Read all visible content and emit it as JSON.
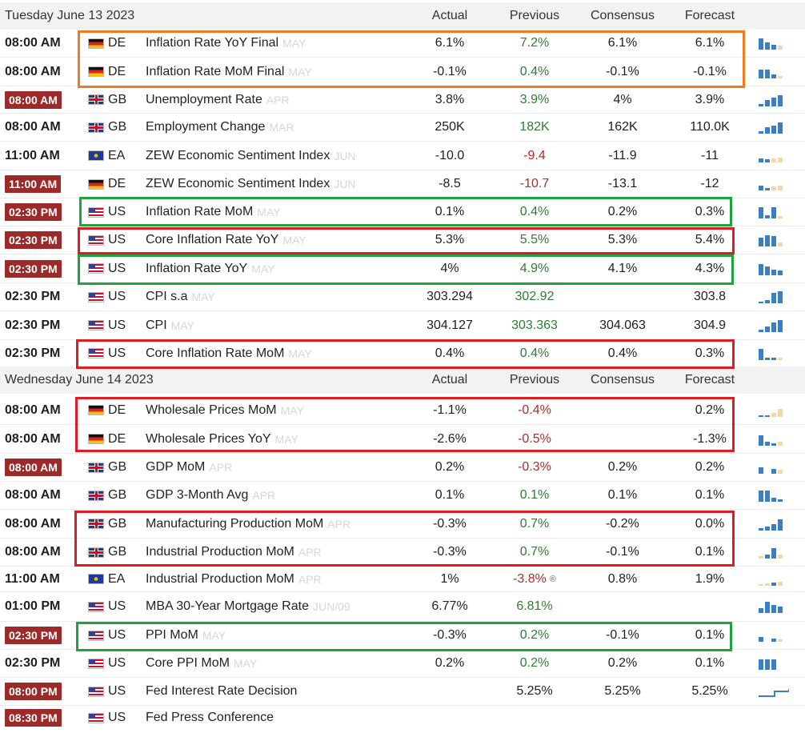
{
  "days": [
    {
      "date": "Tuesday June 13 2023",
      "columns": {
        "actual": "Actual",
        "previous": "Previous",
        "consensus": "Consensus",
        "forecast": "Forecast"
      },
      "rows": [
        {
          "time": "08:00 AM",
          "badge": false,
          "flag": "de",
          "country": "DE",
          "event": "Inflation Rate YoY Final",
          "ref": "MAY",
          "actual": "6.1%",
          "previous": "7.2%",
          "prev_color": "green",
          "consensus": "6.1%",
          "forecast": "6.1%",
          "spark": [
            [
              0.9,
              "b"
            ],
            [
              0.55,
              "b"
            ],
            [
              0.4,
              "b"
            ],
            [
              0.3,
              "l"
            ]
          ]
        },
        {
          "time": "08:00 AM",
          "badge": false,
          "flag": "de",
          "country": "DE",
          "event": "Inflation Rate MoM Final",
          "ref": "MAY",
          "actual": "-0.1%",
          "previous": "0.4%",
          "prev_color": "green",
          "consensus": "-0.1%",
          "forecast": "-0.1%",
          "spark": [
            [
              0.7,
              "b"
            ],
            [
              0.7,
              "b"
            ],
            [
              0.3,
              "b"
            ],
            [
              0.2,
              "l"
            ]
          ]
        },
        {
          "time": "08:00 AM",
          "badge": true,
          "flag": "gb",
          "country": "GB",
          "event": "Unemployment Rate",
          "ref": "APR",
          "actual": "3.8%",
          "previous": "3.9%",
          "prev_color": "green",
          "consensus": "4%",
          "forecast": "3.9%",
          "spark": [
            [
              0.2,
              "b"
            ],
            [
              0.5,
              "b"
            ],
            [
              0.7,
              "b"
            ],
            [
              0.9,
              "b"
            ]
          ]
        },
        {
          "time": "08:00 AM",
          "badge": false,
          "flag": "gb",
          "country": "GB",
          "event": "Employment Change",
          "ref": "MAR",
          "actual": "250K",
          "previous": "182K",
          "prev_color": "green",
          "consensus": "162K",
          "forecast": "110.0K",
          "spark": [
            [
              0.2,
              "b"
            ],
            [
              0.5,
              "b"
            ],
            [
              0.6,
              "b"
            ],
            [
              0.9,
              "b"
            ]
          ]
        },
        {
          "time": "11:00 AM",
          "badge": false,
          "flag": "ea",
          "country": "EA",
          "event": "ZEW Economic Sentiment Index",
          "ref": "JUN",
          "actual": "-10.0",
          "previous": "-9.4",
          "prev_color": "red",
          "consensus": "-11.9",
          "forecast": "-11",
          "spark": [
            [
              0.3,
              "b"
            ],
            [
              0.25,
              "b"
            ],
            [
              0.3,
              "l"
            ],
            [
              0.35,
              "l"
            ]
          ]
        },
        {
          "time": "11:00 AM",
          "badge": true,
          "flag": "de",
          "country": "DE",
          "event": "ZEW Economic Sentiment Index",
          "ref": "JUN",
          "actual": "-8.5",
          "previous": "-10.7",
          "prev_color": "red",
          "consensus": "-13.1",
          "forecast": "-12",
          "spark": [
            [
              0.35,
              "b"
            ],
            [
              0.2,
              "b"
            ],
            [
              0.3,
              "l"
            ],
            [
              0.35,
              "l"
            ]
          ]
        },
        {
          "time": "02:30 PM",
          "badge": true,
          "flag": "us",
          "country": "US",
          "event": "Inflation Rate MoM",
          "ref": "MAY",
          "actual": "0.1%",
          "previous": "0.4%",
          "prev_color": "green",
          "consensus": "0.2%",
          "forecast": "0.3%",
          "spark": [
            [
              0.9,
              "b"
            ],
            [
              0.25,
              "b"
            ],
            [
              0.9,
              "b"
            ],
            [
              0.2,
              "l"
            ]
          ]
        },
        {
          "time": "02:30 PM",
          "badge": true,
          "flag": "us",
          "country": "US",
          "event": "Core Inflation Rate YoY",
          "ref": "MAY",
          "actual": "5.3%",
          "previous": "5.5%",
          "prev_color": "green",
          "consensus": "5.3%",
          "forecast": "5.4%",
          "spark": [
            [
              0.7,
              "b"
            ],
            [
              0.9,
              "b"
            ],
            [
              0.8,
              "b"
            ],
            [
              0.3,
              "l"
            ]
          ]
        },
        {
          "time": "02:30 PM",
          "badge": true,
          "flag": "us",
          "country": "US",
          "event": "Inflation Rate YoY",
          "ref": "MAY",
          "actual": "4%",
          "previous": "4.9%",
          "prev_color": "green",
          "consensus": "4.1%",
          "forecast": "4.3%",
          "spark": [
            [
              0.9,
              "b"
            ],
            [
              0.7,
              "b"
            ],
            [
              0.45,
              "b"
            ],
            [
              0.35,
              "b"
            ]
          ]
        },
        {
          "time": "02:30 PM",
          "badge": false,
          "flag": "us",
          "country": "US",
          "event": "CPI s.a",
          "ref": "MAY",
          "actual": "303.294",
          "previous": "302.92",
          "prev_color": "green",
          "consensus": "",
          "forecast": "303.8",
          "spark": [
            [
              0.15,
              "b"
            ],
            [
              0.25,
              "b"
            ],
            [
              0.8,
              "b"
            ],
            [
              0.95,
              "b"
            ]
          ]
        },
        {
          "time": "02:30 PM",
          "badge": false,
          "flag": "us",
          "country": "US",
          "event": "CPI",
          "ref": "MAY",
          "actual": "304.127",
          "previous": "303.363",
          "prev_color": "green",
          "consensus": "304.063",
          "forecast": "304.9",
          "spark": [
            [
              0.2,
              "b"
            ],
            [
              0.45,
              "b"
            ],
            [
              0.75,
              "b"
            ],
            [
              0.95,
              "b"
            ]
          ]
        },
        {
          "time": "02:30 PM",
          "badge": false,
          "flag": "us",
          "country": "US",
          "event": "Core Inflation Rate MoM",
          "ref": "MAY",
          "actual": "0.4%",
          "previous": "0.4%",
          "prev_color": "green",
          "consensus": "0.4%",
          "forecast": "0.3%",
          "spark": [
            [
              0.9,
              "b"
            ],
            [
              0.2,
              "b"
            ],
            [
              0.2,
              "b"
            ],
            [
              0.2,
              "l"
            ]
          ]
        }
      ]
    },
    {
      "date": "Wednesday June 14 2023",
      "columns": {
        "actual": "Actual",
        "previous": "Previous",
        "consensus": "Consensus",
        "forecast": "Forecast"
      },
      "rows": [
        {
          "time": "08:00 AM",
          "badge": false,
          "flag": "de",
          "country": "DE",
          "event": "Wholesale Prices MoM",
          "ref": "MAY",
          "actual": "-1.1%",
          "previous": "-0.4%",
          "prev_color": "red",
          "consensus": "",
          "forecast": "0.2%",
          "spark": [
            [
              0.15,
              "b"
            ],
            [
              0.15,
              "b"
            ],
            [
              0.3,
              "l"
            ],
            [
              0.6,
              "l"
            ]
          ]
        },
        {
          "time": "08:00 AM",
          "badge": false,
          "flag": "de",
          "country": "DE",
          "event": "Wholesale Prices YoY",
          "ref": "MAY",
          "actual": "-2.6%",
          "previous": "-0.5%",
          "prev_color": "red",
          "consensus": "",
          "forecast": "-1.3%",
          "spark": [
            [
              0.8,
              "b"
            ],
            [
              0.3,
              "b"
            ],
            [
              0.2,
              "b"
            ],
            [
              0.3,
              "l"
            ]
          ]
        },
        {
          "time": "08:00 AM",
          "badge": true,
          "flag": "gb",
          "country": "GB",
          "event": "GDP MoM",
          "ref": "APR",
          "actual": "0.2%",
          "previous": "-0.3%",
          "prev_color": "red",
          "consensus": "0.2%",
          "forecast": "0.2%",
          "spark": [
            [
              0.5,
              "b"
            ],
            [
              0.0,
              "n"
            ],
            [
              0.4,
              "b"
            ],
            [
              0.3,
              "l"
            ]
          ]
        },
        {
          "time": "08:00 AM",
          "badge": false,
          "flag": "gb",
          "country": "GB",
          "event": "GDP 3-Month Avg",
          "ref": "APR",
          "actual": "0.1%",
          "previous": "0.1%",
          "prev_color": "green",
          "consensus": "0.1%",
          "forecast": "0.1%",
          "spark": [
            [
              0.9,
              "b"
            ],
            [
              0.9,
              "b"
            ],
            [
              0.3,
              "b"
            ],
            [
              0.2,
              "b"
            ]
          ]
        },
        {
          "time": "08:00 AM",
          "badge": false,
          "flag": "gb",
          "country": "GB",
          "event": "Manufacturing Production MoM",
          "ref": "APR",
          "actual": "-0.3%",
          "previous": "0.7%",
          "prev_color": "green",
          "consensus": "-0.2%",
          "forecast": "0.0%",
          "spark": [
            [
              0.2,
              "b"
            ],
            [
              0.3,
              "b"
            ],
            [
              0.5,
              "b"
            ],
            [
              0.9,
              "b"
            ]
          ]
        },
        {
          "time": "08:00 AM",
          "badge": false,
          "flag": "gb",
          "country": "GB",
          "event": "Industrial Production MoM",
          "ref": "APR",
          "actual": "-0.3%",
          "previous": "0.7%",
          "prev_color": "green",
          "consensus": "-0.1%",
          "forecast": "0.1%",
          "spark": [
            [
              0.2,
              "l"
            ],
            [
              0.3,
              "b"
            ],
            [
              0.8,
              "b"
            ],
            [
              0.3,
              "l"
            ]
          ]
        },
        {
          "time": "11:00 AM",
          "badge": false,
          "flag": "ea",
          "country": "EA",
          "event": "Industrial Production MoM",
          "ref": "APR",
          "actual": "1%",
          "previous": "-3.8%",
          "prev_color": "red",
          "revised": true,
          "consensus": "0.8%",
          "forecast": "1.9%",
          "spark": [
            [
              0.15,
              "l"
            ],
            [
              0.2,
              "l"
            ],
            [
              0.25,
              "b"
            ],
            [
              0.3,
              "l"
            ]
          ]
        },
        {
          "time": "01:00 PM",
          "badge": false,
          "flag": "us",
          "country": "US",
          "event": "MBA 30-Year Mortgage Rate",
          "ref": "JUN/09",
          "actual": "6.77%",
          "previous": "6.81%",
          "prev_color": "green",
          "consensus": "",
          "forecast": "",
          "spark": [
            [
              0.4,
              "b"
            ],
            [
              0.9,
              "b"
            ],
            [
              0.6,
              "b"
            ],
            [
              0.5,
              "b"
            ]
          ]
        },
        {
          "time": "02:30 PM",
          "badge": true,
          "flag": "us",
          "country": "US",
          "event": "PPI MoM",
          "ref": "MAY",
          "actual": "-0.3%",
          "previous": "0.2%",
          "prev_color": "green",
          "consensus": "-0.1%",
          "forecast": "0.1%",
          "spark": [
            [
              0.4,
              "b"
            ],
            [
              0.0,
              "n"
            ],
            [
              0.25,
              "b"
            ],
            [
              0.2,
              "l"
            ]
          ]
        },
        {
          "time": "02:30 PM",
          "badge": false,
          "flag": "us",
          "country": "US",
          "event": "Core PPI MoM",
          "ref": "MAY",
          "actual": "0.2%",
          "previous": "0.2%",
          "prev_color": "green",
          "consensus": "0.2%",
          "forecast": "0.1%",
          "spark": [
            [
              0.8,
              "b"
            ],
            [
              0.8,
              "b"
            ],
            [
              0.8,
              "b"
            ],
            [
              0.0,
              "n"
            ]
          ]
        },
        {
          "time": "08:00 PM",
          "badge": true,
          "flag": "us",
          "country": "US",
          "event": "Fed Interest Rate Decision",
          "ref": "",
          "actual": "",
          "previous": "5.25%",
          "prev_color": "black",
          "consensus": "5.25%",
          "forecast": "5.25%",
          "spark": "step"
        },
        {
          "time": "08:30 PM",
          "badge": true,
          "flag": "us",
          "country": "US",
          "event": "Fed Press Conference",
          "ref": "",
          "actual": "",
          "previous": "",
          "prev_color": "black",
          "consensus": "",
          "forecast": "",
          "spark": "none"
        }
      ]
    }
  ],
  "colors": {
    "badge": "#9c2a28",
    "positive": "#2e7d32",
    "negative": "#b22a26",
    "spark_bar": "#3a7fc4",
    "spark_forecast": "#f5d7a5",
    "highlight_orange": "#f47a20",
    "highlight_red": "#e11b22",
    "highlight_green": "#1fa33f"
  }
}
